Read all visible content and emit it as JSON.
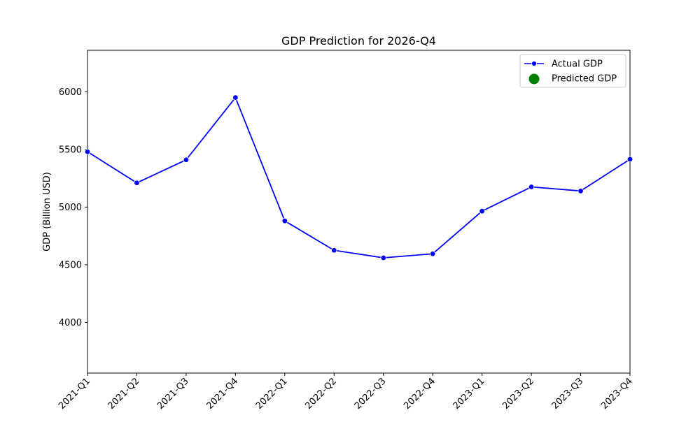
{
  "chart_data": {
    "type": "line",
    "title": "GDP Prediction for 2026-Q4",
    "xlabel": "",
    "ylabel": "GDP (Billion USD)",
    "categories": [
      "2021-Q1",
      "2021-Q2",
      "2021-Q3",
      "2021-Q4",
      "2022-Q1",
      "2022-Q2",
      "2022-Q3",
      "2022-Q4",
      "2023-Q1",
      "2023-Q2",
      "2023-Q3",
      "2023-Q4"
    ],
    "series": [
      {
        "name": "Actual GDP",
        "color": "#0000ff",
        "marker": "circle",
        "values": [
          5480,
          5210,
          5410,
          5950,
          4880,
          4625,
          4560,
          4595,
          4965,
          5175,
          5140,
          5415
        ]
      }
    ],
    "predicted": {
      "name": "Predicted GDP",
      "color": "#008000",
      "marker": "circle"
    },
    "ylim": [
      3560,
      6360
    ],
    "yticks": [
      4000,
      4500,
      5000,
      5500,
      6000
    ],
    "grid": false,
    "legend_position": "top-right"
  }
}
